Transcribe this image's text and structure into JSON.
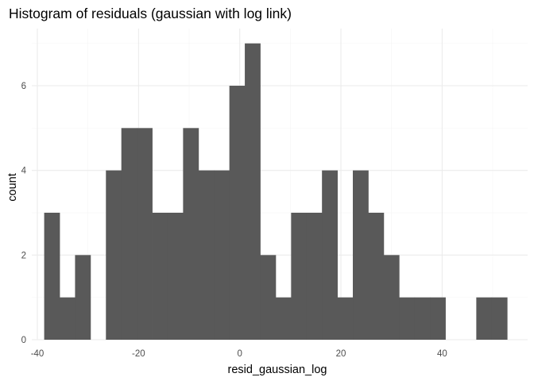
{
  "chart_data": {
    "type": "bar",
    "title": "Histogram of residuals (gaussian with log link)",
    "xlabel": "resid_gaussian_log",
    "ylabel": "count",
    "xlim": [
      -41.1,
      56.9
    ],
    "ylim": [
      0,
      7.35
    ],
    "x_ticks": [
      -40,
      -20,
      0,
      20,
      40
    ],
    "x_tick_labels": [
      "-40",
      "-20",
      "0",
      "20",
      "40"
    ],
    "y_ticks": [
      0,
      2,
      4,
      6
    ],
    "y_tick_labels": [
      "0",
      "2",
      "4",
      "6"
    ],
    "bin_width": 3.05,
    "bin_left_edges": [
      -38.65,
      -35.6,
      -32.55,
      -29.5,
      -26.45,
      -23.4,
      -20.35,
      -17.3,
      -14.25,
      -11.2,
      -8.15,
      -5.1,
      -2.05,
      1.0,
      4.05,
      7.1,
      10.15,
      13.2,
      16.25,
      19.3,
      22.35,
      25.4,
      28.45,
      31.5,
      34.55,
      37.6,
      40.65,
      43.7,
      46.75,
      49.8
    ],
    "counts": [
      3,
      1,
      2,
      0,
      4,
      5,
      5,
      3,
      3,
      5,
      4,
      4,
      6,
      7,
      2,
      1,
      3,
      3,
      4,
      1,
      4,
      3,
      2,
      1,
      1,
      1,
      0,
      0,
      1,
      1
    ],
    "bar_color": "#595959",
    "grid": true,
    "legend": "none"
  }
}
